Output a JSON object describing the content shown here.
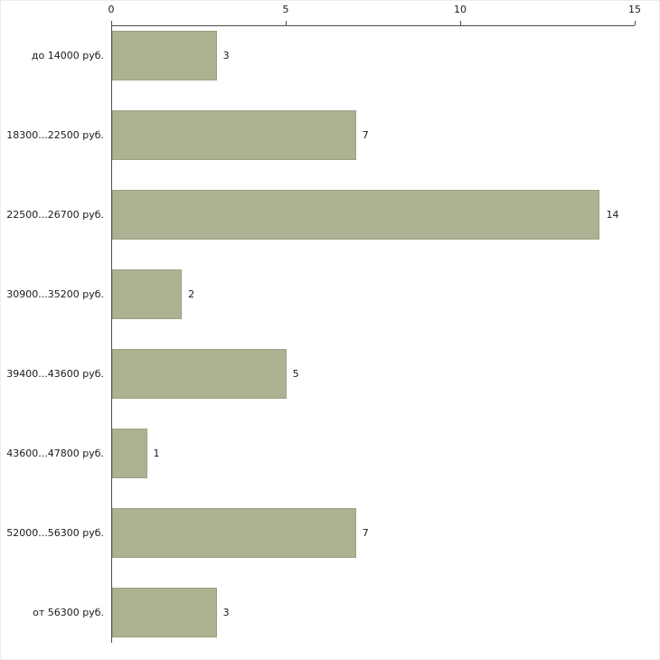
{
  "chart_data": {
    "type": "bar",
    "orientation": "horizontal",
    "title": "",
    "xlabel": "",
    "ylabel": "",
    "categories": [
      "до 14000 руб.",
      "18300...22500 руб.",
      "22500...26700 руб.",
      "30900...35200 руб.",
      "39400...43600 руб.",
      "43600...47800 руб.",
      "52000...56300 руб.",
      "от 56300 руб."
    ],
    "values": [
      3,
      7,
      14,
      2,
      5,
      1,
      7,
      3
    ],
    "xlim": [
      0,
      15
    ],
    "xticks": [
      "0",
      "5",
      "10",
      "15"
    ],
    "grid": false,
    "legend_position": "none",
    "bar_color": "#adb293",
    "bar_border_color": "#9aa180",
    "axis_color": "#4d4d4d",
    "text_color": "#1a1a1a",
    "background_color": "#ffffff"
  }
}
